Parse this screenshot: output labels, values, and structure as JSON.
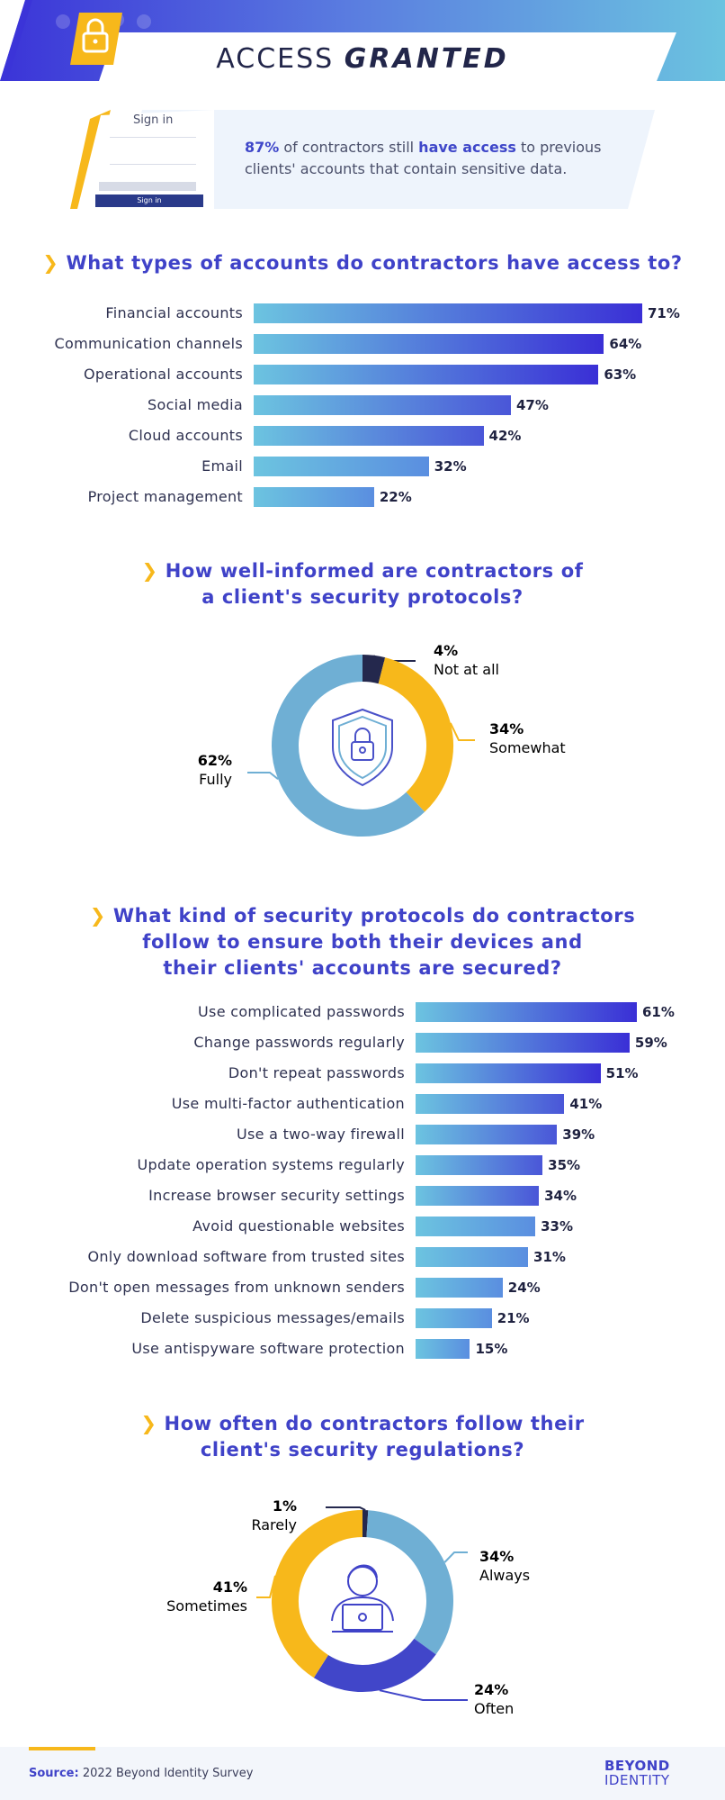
{
  "header": {
    "title_plain": "ACCESS",
    "title_bold": "GRANTED"
  },
  "intro": {
    "signin_title": "Sign in",
    "signin_button": "Sign in",
    "text_pre": "",
    "text_pct": "87%",
    "text_mid": " of contractors still ",
    "text_hl": "have access",
    "text_post": " to previous clients' accounts that contain sensitive data."
  },
  "colors": {
    "yellow": "#f7b81b",
    "blue_dark": "#3a2fd6",
    "blue_light": "#6cc4e0",
    "donut_blue": "#6fafd4",
    "navy": "#24284d",
    "indigo": "#4146c9"
  },
  "chart_data": [
    {
      "type": "bar",
      "title": "What types of accounts do contractors have access to?",
      "categories": [
        "Financial accounts",
        "Communication channels",
        "Operational accounts",
        "Social media",
        "Cloud accounts",
        "Email",
        "Project management"
      ],
      "values": [
        71,
        64,
        63,
        47,
        42,
        32,
        22
      ],
      "value_labels": [
        "71%",
        "64%",
        "63%",
        "47%",
        "42%",
        "32%",
        "22%"
      ]
    },
    {
      "type": "pie",
      "title": "How well-informed are contractors of a client's security protocols?",
      "icon": "shield-lock-icon",
      "slices": [
        {
          "label": "Not at all",
          "value": 4,
          "pct_label": "4%",
          "color": "#24284d"
        },
        {
          "label": "Somewhat",
          "value": 34,
          "pct_label": "34%",
          "color": "#f7b81b"
        },
        {
          "label": "Fully",
          "value": 62,
          "pct_label": "62%",
          "color": "#6fafd4"
        }
      ]
    },
    {
      "type": "bar",
      "title": "What kind of security protocols do contractors follow to ensure both their devices and their clients' accounts are secured?",
      "categories": [
        "Use complicated passwords",
        "Change passwords regularly",
        "Don't repeat passwords",
        "Use multi-factor authentication",
        "Use a two-way firewall",
        "Update operation systems regularly",
        "Increase browser security settings",
        "Avoid questionable websites",
        "Only download software from trusted sites",
        "Don't open messages from unknown senders",
        "Delete suspicious messages/emails",
        "Use antispyware software protection"
      ],
      "values": [
        61,
        59,
        51,
        41,
        39,
        35,
        34,
        33,
        31,
        24,
        21,
        15
      ],
      "value_labels": [
        "61%",
        "59%",
        "51%",
        "41%",
        "39%",
        "35%",
        "34%",
        "33%",
        "31%",
        "24%",
        "21%",
        "15%"
      ]
    },
    {
      "type": "pie",
      "title": "How often do contractors follow their client's security regulations?",
      "icon": "person-laptop-icon",
      "slices": [
        {
          "label": "Rarely",
          "value": 1,
          "pct_label": "1%",
          "color": "#24284d"
        },
        {
          "label": "Always",
          "value": 34,
          "pct_label": "34%",
          "color": "#6fafd4"
        },
        {
          "label": "Often",
          "value": 24,
          "pct_label": "24%",
          "color": "#4146c9"
        },
        {
          "label": "Sometimes",
          "value": 41,
          "pct_label": "41%",
          "color": "#f7b81b"
        }
      ]
    }
  ],
  "q1": {
    "title": "What types of accounts do contractors have access to?"
  },
  "q2": {
    "line1": "How well-informed are contractors of",
    "line2": "a client's security protocols?"
  },
  "q3": {
    "line1": "What kind of security protocols do contractors",
    "line2": "follow to ensure both their devices and",
    "line3": "their clients' accounts are secured?"
  },
  "q4": {
    "line1": "How often do contractors follow their",
    "line2": "client's security regulations?"
  },
  "footer": {
    "source_label": "Source:",
    "source_text": " 2022 Beyond Identity Survey",
    "brand_line1": "BEYOND",
    "brand_line2": "IDENTITY"
  }
}
